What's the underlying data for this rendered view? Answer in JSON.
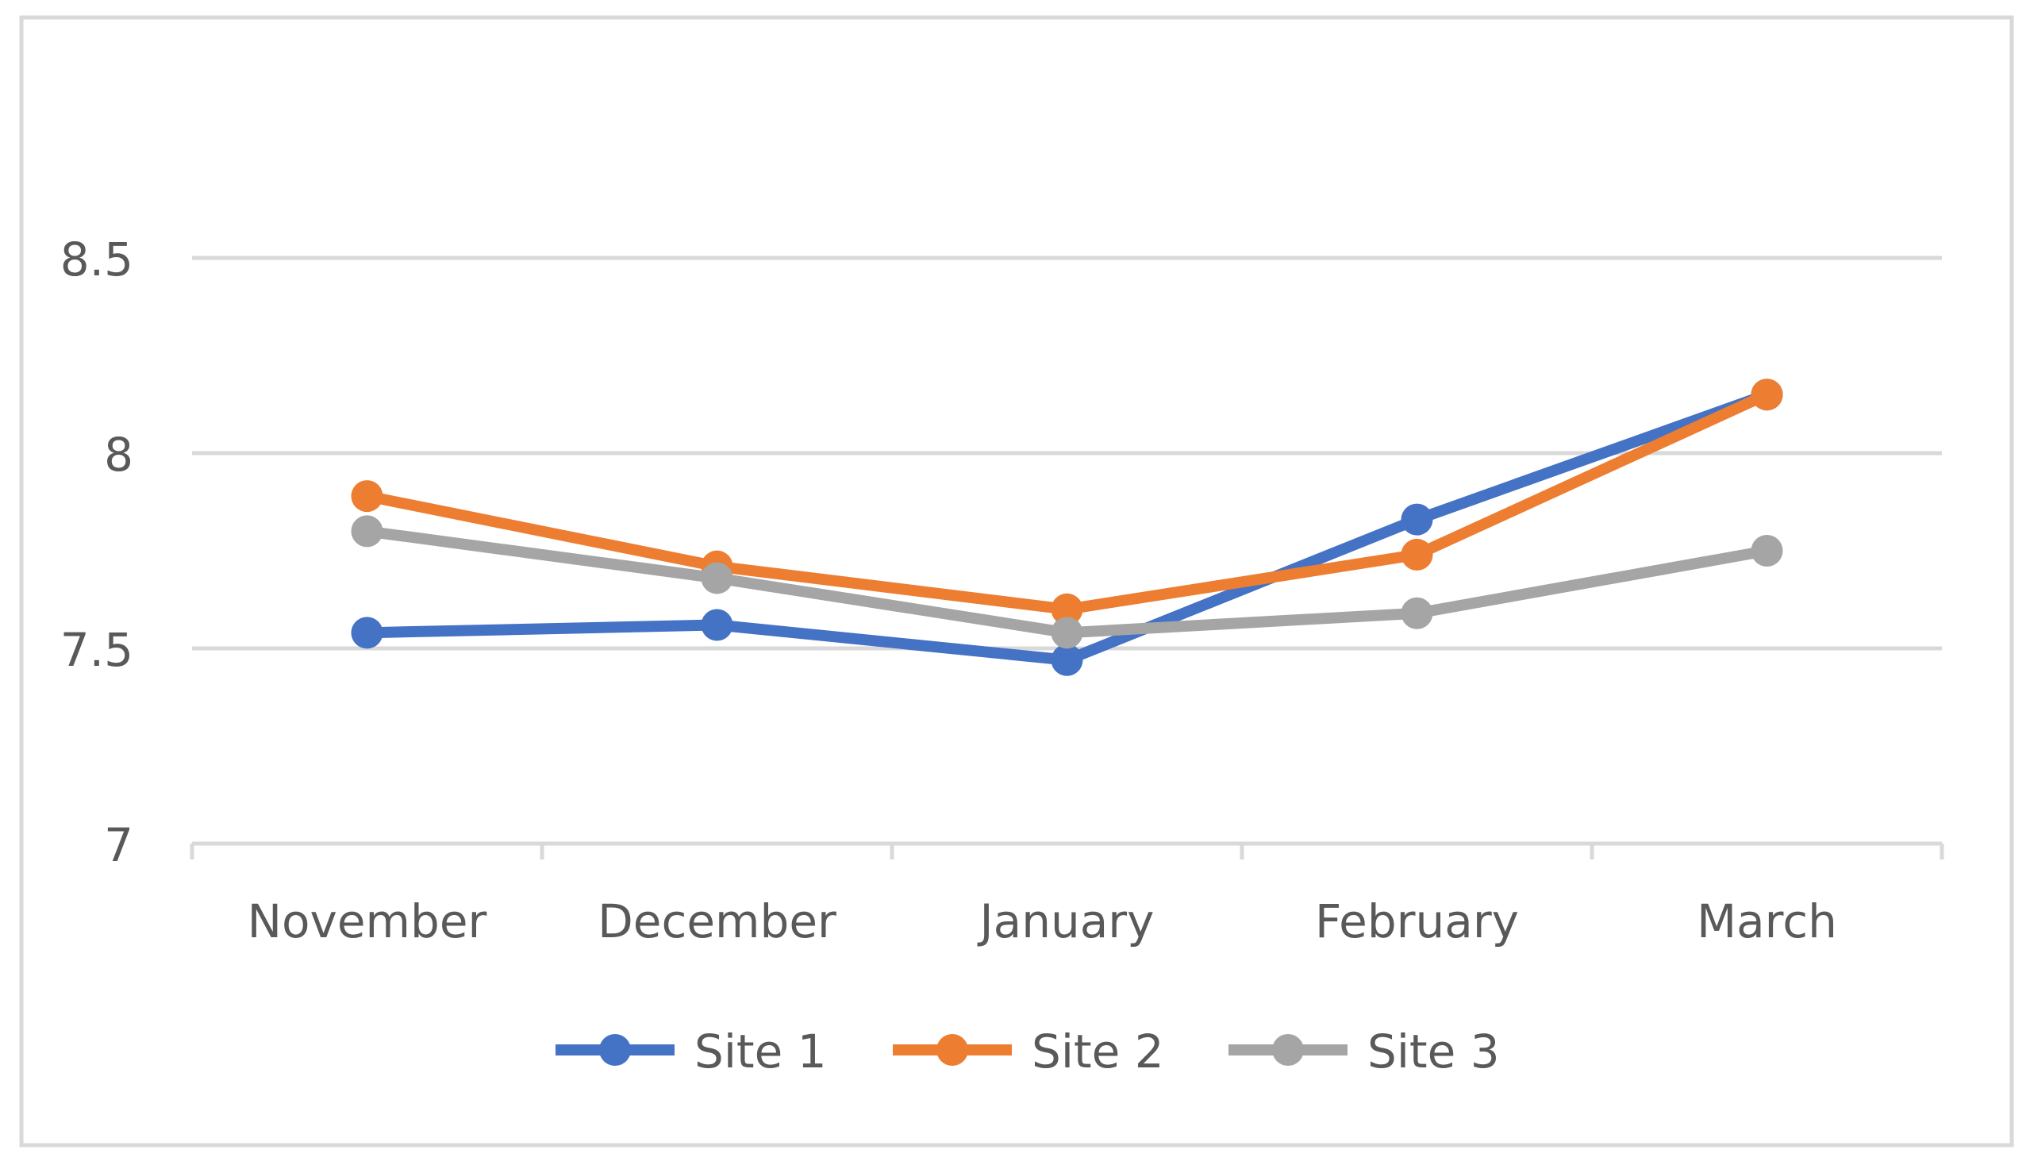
{
  "chart_data": {
    "type": "line",
    "title": "",
    "xlabel": "",
    "ylabel": "",
    "categories": [
      "November",
      "December",
      "January",
      "February",
      "March"
    ],
    "y_ticks": [
      "7",
      "7.5",
      "8",
      "8.5"
    ],
    "ylim": [
      7,
      9
    ],
    "grid": true,
    "legend_position": "bottom",
    "series": [
      {
        "name": "Site 1",
        "color": "#4472C4",
        "values": [
          7.54,
          7.56,
          7.47,
          7.83,
          8.15
        ]
      },
      {
        "name": "Site 2",
        "color": "#ED7D31",
        "values": [
          7.89,
          7.71,
          7.6,
          7.74,
          8.15
        ]
      },
      {
        "name": "Site 3",
        "color": "#A5A5A5",
        "values": [
          7.8,
          7.68,
          7.54,
          7.59,
          7.75
        ]
      }
    ]
  },
  "colors": {
    "gridline": "#D9D9D9",
    "axis": "#D9D9D9",
    "frame": "#D9D9D9",
    "text": "#595959"
  }
}
